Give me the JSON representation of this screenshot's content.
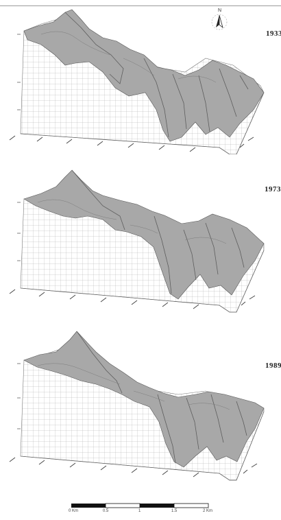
{
  "panels": [
    {
      "id": "a",
      "year": "1933"
    },
    {
      "id": "b",
      "year": "1973"
    },
    {
      "id": "c",
      "year": "1989"
    }
  ],
  "north_arrow": {
    "label": "N",
    "icon": "north-arrow-icon"
  },
  "scale_bar": {
    "labels": [
      "0 Km",
      "0.5",
      "1",
      "1.5",
      "2 Km"
    ]
  },
  "colors": {
    "surface": "#a9a9a9",
    "surface_dark": "#6e6e6e",
    "grid": "#9c9c9c",
    "wall": "#f4f4f4"
  }
}
